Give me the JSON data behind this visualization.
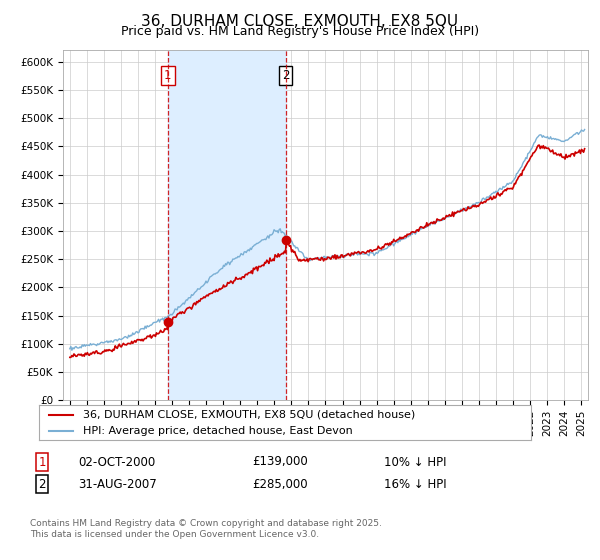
{
  "title": "36, DURHAM CLOSE, EXMOUTH, EX8 5QU",
  "subtitle": "Price paid vs. HM Land Registry's House Price Index (HPI)",
  "ylabel_ticks": [
    "£0",
    "£50K",
    "£100K",
    "£150K",
    "£200K",
    "£250K",
    "£300K",
    "£350K",
    "£400K",
    "£450K",
    "£500K",
    "£550K",
    "£600K"
  ],
  "ylim": [
    0,
    620000
  ],
  "xlim_start": 1994.6,
  "xlim_end": 2025.4,
  "sale1_date": "02-OCT-2000",
  "sale1_price": 139000,
  "sale1_label": "1",
  "sale1_x": 2000.75,
  "sale1_hpi_diff": "10% ↓ HPI",
  "sale2_date": "31-AUG-2007",
  "sale2_price": 285000,
  "sale2_label": "2",
  "sale2_x": 2007.67,
  "sale2_hpi_diff": "16% ↓ HPI",
  "legend_line1": "36, DURHAM CLOSE, EXMOUTH, EX8 5QU (detached house)",
  "legend_line2": "HPI: Average price, detached house, East Devon",
  "footnote": "Contains HM Land Registry data © Crown copyright and database right 2025.\nThis data is licensed under the Open Government Licence v3.0.",
  "line_color_red": "#cc0000",
  "line_color_blue": "#7aafd4",
  "shade_color": "#ddeeff",
  "background_color": "#ffffff",
  "grid_color": "#cccccc",
  "title_fontsize": 11,
  "subtitle_fontsize": 9,
  "tick_fontsize": 7.5,
  "legend_fontsize": 8,
  "annotation_fontsize": 8
}
